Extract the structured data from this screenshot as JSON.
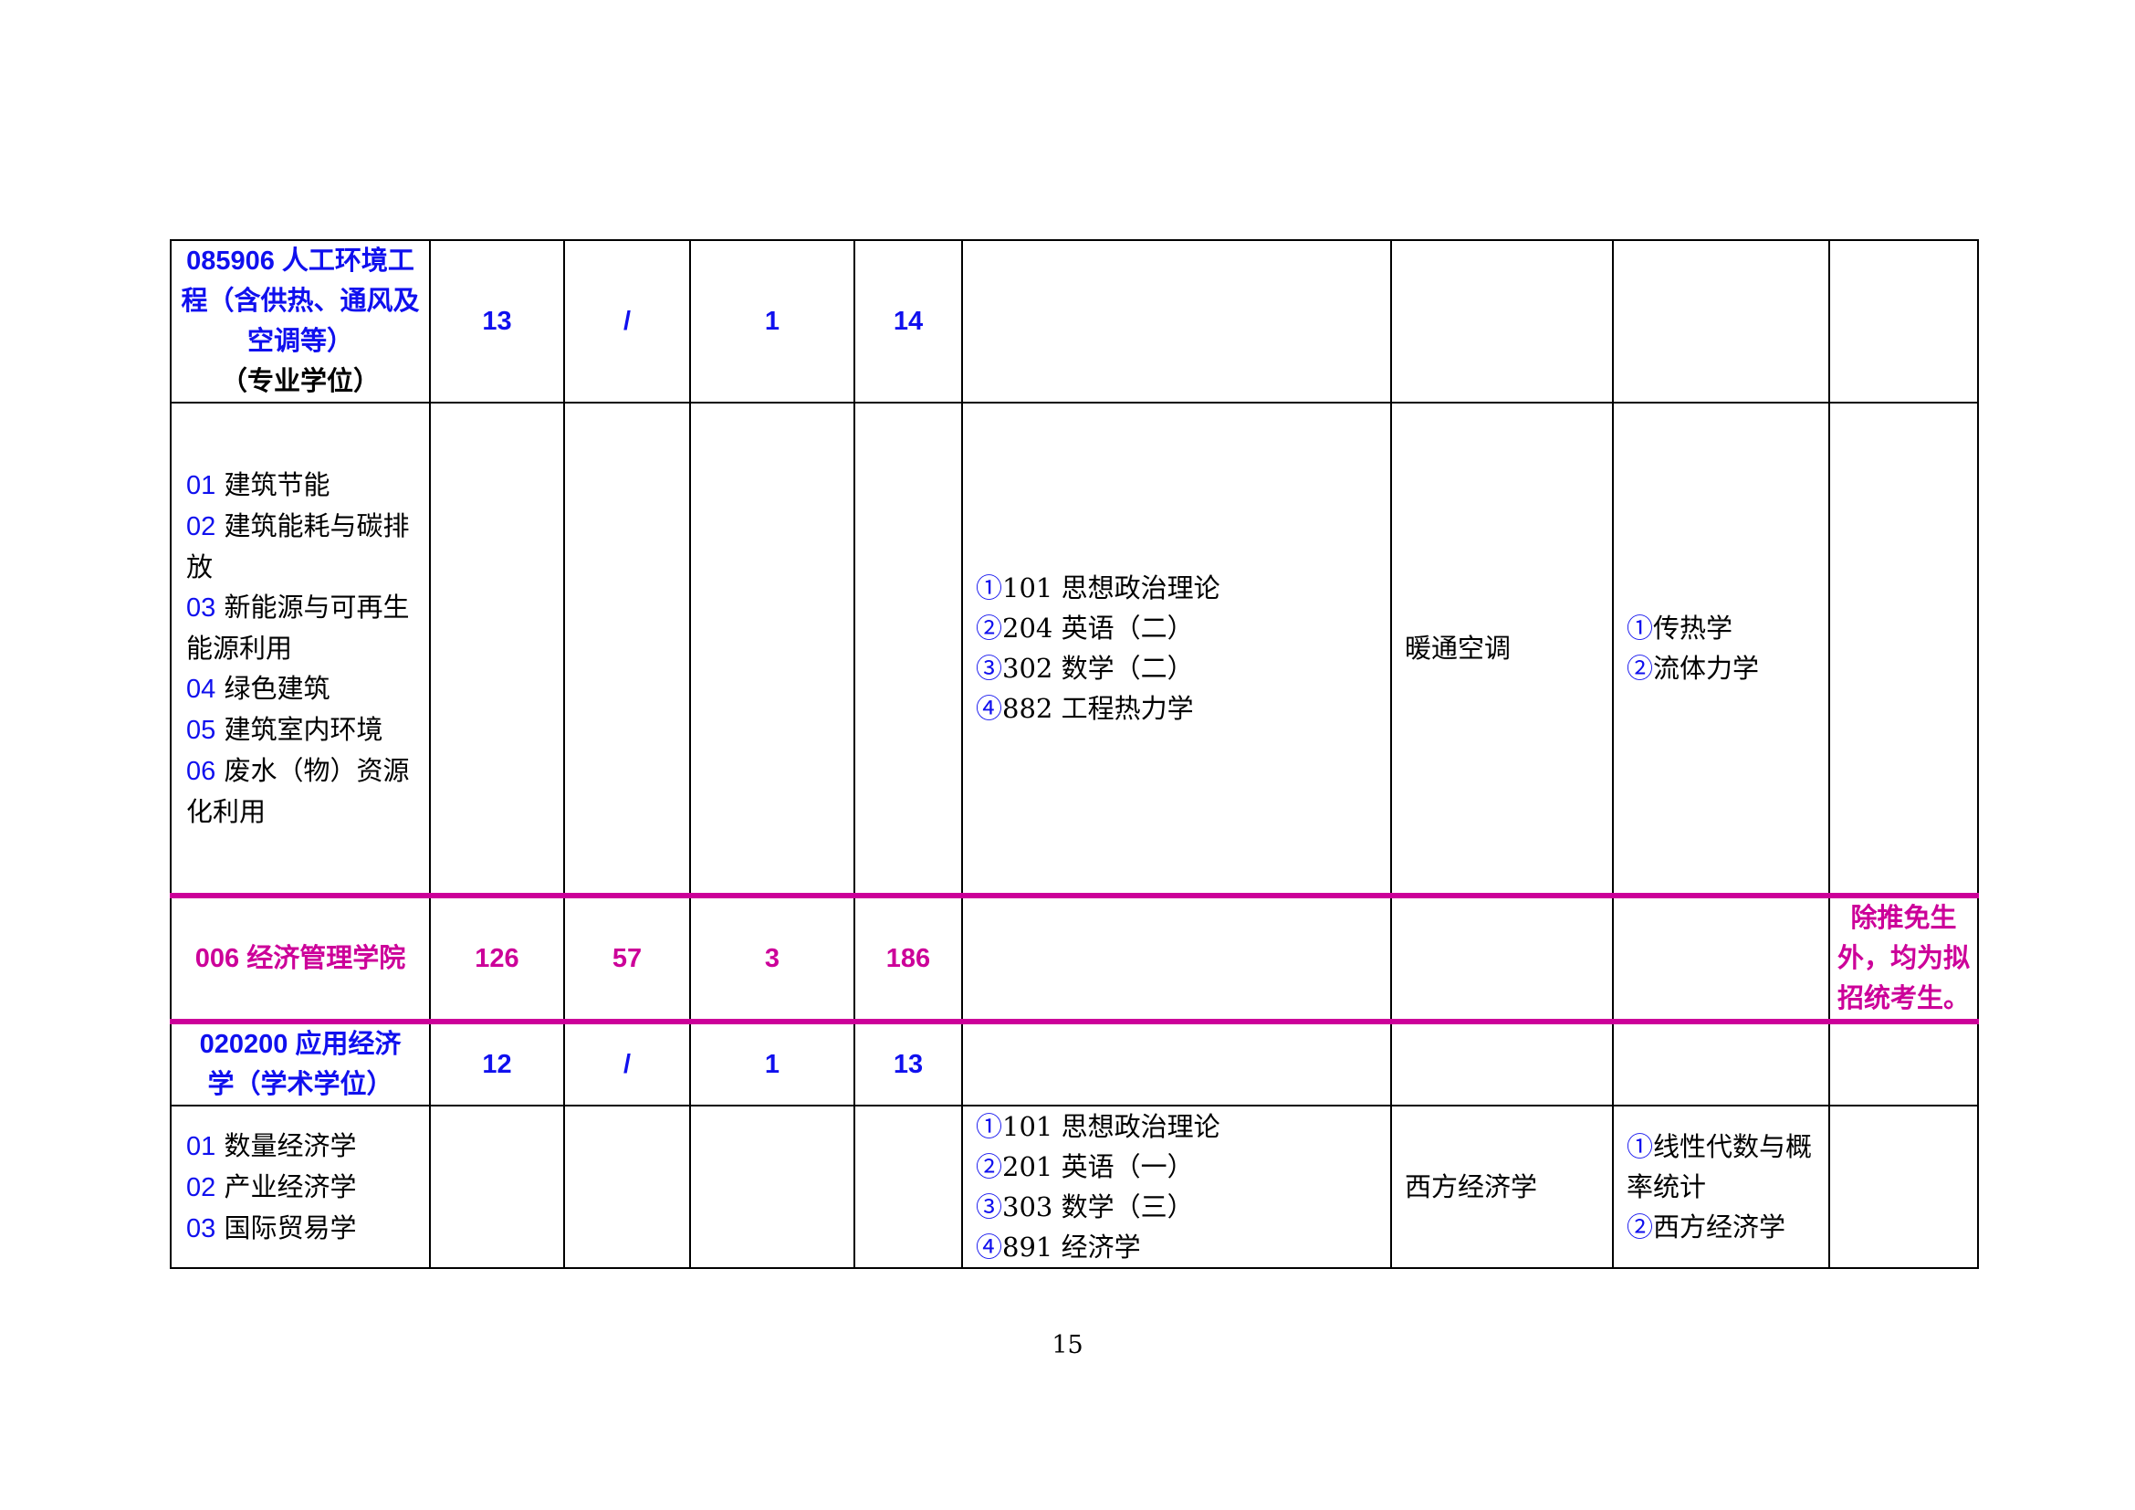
{
  "rows": [
    {
      "major": "085906 人工环境工程（含供热、通风及空调等）",
      "type": "（专业学位）",
      "a": "13",
      "b": "/",
      "c": "1",
      "total": "14"
    },
    {
      "directions": [
        {
          "code": "01",
          "name": "建筑节能"
        },
        {
          "code": "02",
          "name": "建筑能耗与碳排放"
        },
        {
          "code": "03",
          "name": "新能源与可再生能源利用"
        },
        {
          "code": "04",
          "name": "绿色建筑"
        },
        {
          "code": "05",
          "name": "建筑室内环境"
        },
        {
          "code": "06",
          "name": "废水（物）资源化利用"
        }
      ],
      "exams": [
        {
          "mark": "①",
          "text": "101 思想政治理论"
        },
        {
          "mark": "②",
          "text": "204 英语（二）"
        },
        {
          "mark": "③",
          "text": "302 数学（二）"
        },
        {
          "mark": "④",
          "text": "882 工程热力学"
        }
      ],
      "retest": "暖通空调",
      "equiv": [
        {
          "mark": "①",
          "text": "传热学"
        },
        {
          "mark": "②",
          "text": "流体力学"
        }
      ]
    },
    {
      "school": "006 经济管理学院",
      "a": "126",
      "b": "57",
      "c": "3",
      "total": "186",
      "note": "除推免生外，均为拟招统考生。"
    },
    {
      "major": "020200 应用经济学（学术学位）",
      "a": "12",
      "b": "/",
      "c": "1",
      "total": "13"
    },
    {
      "directions": [
        {
          "code": "01",
          "name": "数量经济学"
        },
        {
          "code": "02",
          "name": "产业经济学"
        },
        {
          "code": "03",
          "name": " 国际贸易学"
        }
      ],
      "exams": [
        {
          "mark": "①",
          "text": "101 思想政治理论"
        },
        {
          "mark": "②",
          "text": "201 英语（一）"
        },
        {
          "mark": "③",
          "text": "303 数学（三）"
        },
        {
          "mark": "④",
          "text": "891 经济学"
        }
      ],
      "retest": "西方经济学",
      "equiv": [
        {
          "mark": "①",
          "text": "线性代数与概率统计"
        },
        {
          "mark": "②",
          "text": "西方经济学"
        }
      ]
    }
  ],
  "page_number": "15",
  "colors": {
    "blue": "#1010ee",
    "magenta": "#cc0099"
  }
}
